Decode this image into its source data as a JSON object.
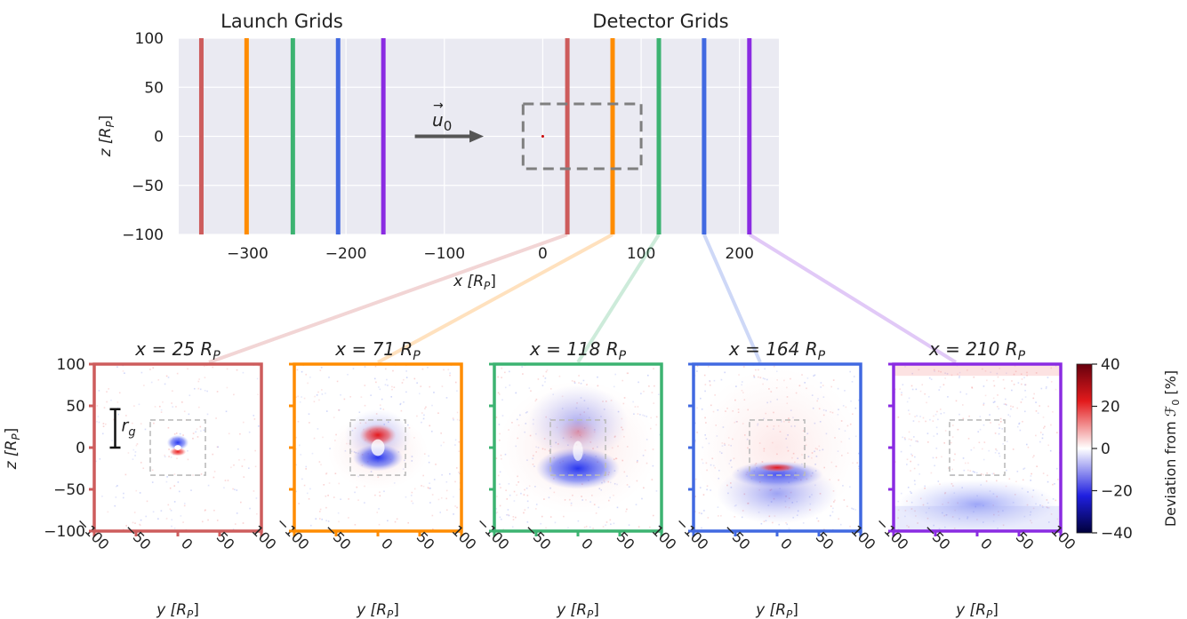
{
  "top": {
    "launch_label": "Launch Grids",
    "detector_label": "Detector Grids",
    "velocity_label": "u",
    "velocity_sub": "0",
    "xlabel": "x [R",
    "xlabel_sub": "P",
    "xlabel_end": "]",
    "ylabel": "z [R",
    "ylabel_sub": "P",
    "ylabel_end": "]"
  },
  "panels": [
    {
      "title": "x = 25 R",
      "sub": "P"
    },
    {
      "title": "x = 71 R",
      "sub": "P"
    },
    {
      "title": "x = 118 R",
      "sub": "P"
    },
    {
      "title": "x = 164 R",
      "sub": "P"
    },
    {
      "title": "x = 210 R",
      "sub": "P"
    }
  ],
  "bottom": {
    "xlabel": "y [R",
    "xlabel_sub": "P",
    "xlabel_end": "]",
    "ylabel": "z [R",
    "ylabel_sub": "P",
    "ylabel_end": "]",
    "rg_label": "r",
    "rg_sub": "g"
  },
  "colorbar": {
    "label": "Deviation from ℱ",
    "label_sub": "0",
    "label_end": "  [%]",
    "ticks": [
      40,
      20,
      0,
      -20,
      -40
    ],
    "tick_labels": [
      "40",
      "20",
      "0",
      "−20",
      "−40"
    ],
    "range": [
      -40,
      40
    ]
  },
  "colors": {
    "red": "#cd5c5c",
    "orange": "#ff8c00",
    "green": "#3cb371",
    "blue": "#4169e1",
    "purple": "#8a2be2",
    "plot_bg": "#eaeaf2",
    "grid": "#ffffff",
    "dashed": "#7f7f7f"
  },
  "chart_data": {
    "type": "scatter",
    "top_panel": {
      "xlim": [
        -370,
        240
      ],
      "ylim": [
        -100,
        100
      ],
      "xticks": [
        -300,
        -200,
        -100,
        0,
        100,
        200
      ],
      "xtick_labels": [
        "−300",
        "−200",
        "−100",
        "0",
        "100",
        "200"
      ],
      "yticks": [
        100,
        50,
        0,
        -50,
        -100
      ],
      "ytick_labels": [
        "100",
        "50",
        "0",
        "−50",
        "−100"
      ],
      "launch_grids_x": [
        -347,
        -301,
        -254,
        -208,
        -162
      ],
      "detector_grids_x": [
        25,
        71,
        118,
        164,
        210
      ],
      "grid_colors": [
        "red",
        "orange",
        "green",
        "blue",
        "purple"
      ],
      "dashed_box": {
        "x": [
          -20,
          100
        ],
        "z": [
          -33,
          33
        ]
      },
      "arrow": {
        "x": [
          -130,
          -60
        ],
        "z": 0
      },
      "planet": {
        "x": 0,
        "z": 0
      },
      "grid": true
    },
    "detector_panels": {
      "xlim": [
        -100,
        100
      ],
      "ylim": [
        -100,
        100
      ],
      "xticks": [
        -100,
        -50,
        0,
        50,
        100
      ],
      "xtick_labels": [
        "−100",
        "−50",
        "0",
        "50",
        "100"
      ],
      "yticks": [
        100,
        50,
        0,
        -50,
        -100
      ],
      "ytick_labels": [
        "100",
        "50",
        "0",
        "−50",
        "−100"
      ],
      "dashed_box": {
        "y": [
          -33,
          33
        ],
        "z": [
          -33,
          33
        ]
      },
      "rg_bar": {
        "y": -75,
        "z": [
          0,
          46
        ]
      },
      "x_positions": [
        25,
        71,
        118,
        164,
        210
      ],
      "colors": [
        "red",
        "orange",
        "green",
        "blue",
        "purple"
      ]
    }
  }
}
